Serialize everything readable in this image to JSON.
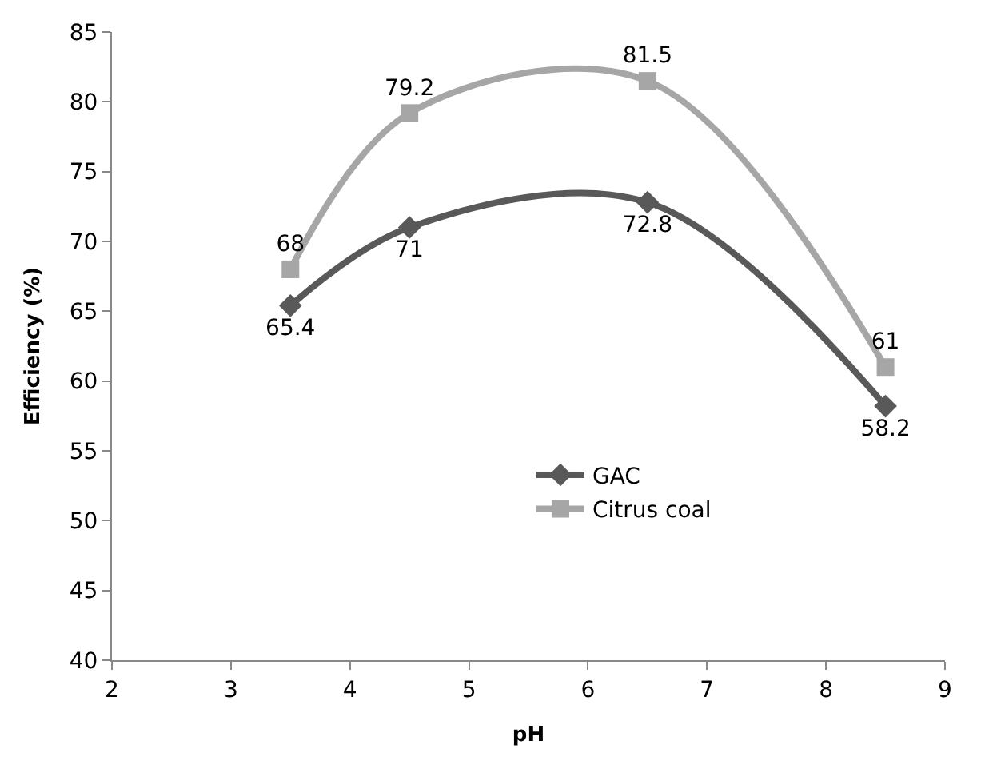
{
  "chart_data": {
    "type": "line",
    "xlabel": "pH",
    "ylabel": "Efficiency (%)",
    "x": [
      3.5,
      4.5,
      6.5,
      8.5
    ],
    "series": [
      {
        "name": "GAC",
        "color": "#595959",
        "marker": "diamond",
        "values": [
          65.4,
          71,
          72.8,
          58.2
        ]
      },
      {
        "name": "Citrus coal",
        "color": "#a6a6a6",
        "marker": "square",
        "values": [
          68,
          79.2,
          81.5,
          61
        ]
      }
    ],
    "xlim": [
      2,
      9
    ],
    "xticks": [
      2,
      3,
      4,
      5,
      6,
      7,
      8,
      9
    ],
    "ylim": [
      40,
      85
    ],
    "yticks": [
      40,
      45,
      50,
      55,
      60,
      65,
      70,
      75,
      80,
      85
    ],
    "legend": "bottom",
    "data_labels": true,
    "line_style": "solid"
  }
}
